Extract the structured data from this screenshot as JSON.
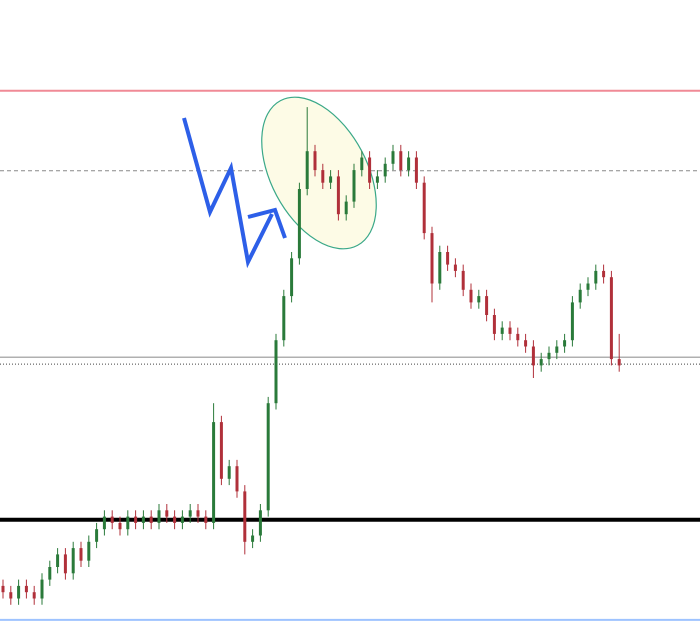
{
  "chart_data": {
    "type": "candlestick",
    "ylim": [
      0,
      100
    ],
    "up_color": "#2a7a3a",
    "down_color": "#b0303a",
    "levels": [
      {
        "value": 85.6,
        "color": "#f08a96",
        "style": "solid",
        "width": 2
      },
      {
        "value": 72.9,
        "color": "#888888",
        "style": "dashed",
        "width": 1
      },
      {
        "value": 43.3,
        "color": "#b0b0b0",
        "style": "solid",
        "width": 1.5
      },
      {
        "value": 42.2,
        "color": "#444444",
        "style": "dotted",
        "width": 1
      },
      {
        "value": 17.5,
        "color": "#000000",
        "style": "solid",
        "width": 4
      },
      {
        "value": 1.6,
        "color": "#9ec3ff",
        "style": "solid",
        "width": 2
      }
    ],
    "ohlc": [
      [
        7,
        8,
        5,
        6
      ],
      [
        6,
        7,
        4,
        5
      ],
      [
        5,
        8,
        4,
        7
      ],
      [
        7,
        8,
        5,
        6
      ],
      [
        6,
        7,
        4,
        5
      ],
      [
        5,
        9,
        4,
        8
      ],
      [
        8,
        11,
        7,
        10
      ],
      [
        10,
        13,
        9,
        12
      ],
      [
        12,
        13,
        8,
        9
      ],
      [
        9,
        14,
        8,
        13
      ],
      [
        13,
        14,
        10,
        11
      ],
      [
        11,
        15,
        10,
        14
      ],
      [
        14,
        17,
        13,
        16
      ],
      [
        16,
        19,
        15,
        18
      ],
      [
        18,
        19,
        16,
        17
      ],
      [
        17,
        18,
        15,
        16
      ],
      [
        16,
        19,
        15,
        18
      ],
      [
        18,
        19,
        16,
        17
      ],
      [
        17,
        19,
        16,
        18
      ],
      [
        18,
        19,
        16,
        17
      ],
      [
        17,
        20,
        16,
        19
      ],
      [
        19,
        20,
        17,
        18
      ],
      [
        18,
        19,
        16,
        17
      ],
      [
        17,
        19,
        16,
        18
      ],
      [
        18,
        20,
        17,
        19
      ],
      [
        19,
        20,
        17,
        18
      ],
      [
        18,
        19,
        16,
        17
      ],
      [
        17,
        36,
        16,
        33
      ],
      [
        33,
        34,
        23,
        24
      ],
      [
        24,
        27,
        23,
        26
      ],
      [
        26,
        27,
        21,
        22
      ],
      [
        22,
        23,
        12,
        14
      ],
      [
        14,
        16,
        13,
        15
      ],
      [
        15,
        20,
        14,
        19
      ],
      [
        19,
        37,
        18,
        36
      ],
      [
        36,
        47,
        35,
        46
      ],
      [
        46,
        54,
        45,
        53
      ],
      [
        53,
        60,
        52,
        59
      ],
      [
        59,
        71,
        58,
        70
      ],
      [
        70,
        83,
        69,
        76
      ],
      [
        76,
        77,
        72,
        73
      ],
      [
        73,
        74,
        70,
        71
      ],
      [
        71,
        73,
        70,
        72
      ],
      [
        72,
        73,
        65,
        66
      ],
      [
        66,
        69,
        65,
        68
      ],
      [
        68,
        74,
        67,
        73
      ],
      [
        73,
        76,
        72,
        75
      ],
      [
        75,
        76,
        70,
        71
      ],
      [
        71,
        73,
        70,
        72
      ],
      [
        72,
        75,
        71,
        74
      ],
      [
        74,
        77,
        73,
        76
      ],
      [
        76,
        77,
        72,
        73
      ],
      [
        73,
        76,
        72,
        75
      ],
      [
        75,
        76,
        70,
        71
      ],
      [
        71,
        72,
        62,
        63
      ],
      [
        63,
        64,
        52,
        55
      ],
      [
        55,
        61,
        54,
        60
      ],
      [
        60,
        61,
        57,
        58
      ],
      [
        58,
        59,
        56,
        57
      ],
      [
        57,
        58,
        53,
        54
      ],
      [
        54,
        55,
        51,
        52
      ],
      [
        52,
        54,
        51,
        53
      ],
      [
        53,
        54,
        49,
        50
      ],
      [
        50,
        51,
        46,
        47
      ],
      [
        47,
        49,
        46,
        48
      ],
      [
        48,
        49,
        46,
        47
      ],
      [
        47,
        48,
        45,
        46
      ],
      [
        46,
        47,
        44,
        45
      ],
      [
        45,
        46,
        40,
        42
      ],
      [
        42,
        44,
        41,
        43
      ],
      [
        43,
        45,
        42,
        44
      ],
      [
        44,
        46,
        43,
        45
      ],
      [
        45,
        47,
        44,
        46
      ],
      [
        46,
        53,
        45,
        52
      ],
      [
        52,
        55,
        51,
        54
      ],
      [
        54,
        56,
        53,
        55
      ],
      [
        55,
        58,
        54,
        57
      ],
      [
        57,
        58,
        55,
        56
      ],
      [
        56,
        57,
        42,
        43
      ],
      [
        43,
        47,
        41,
        42
      ]
    ]
  }
}
